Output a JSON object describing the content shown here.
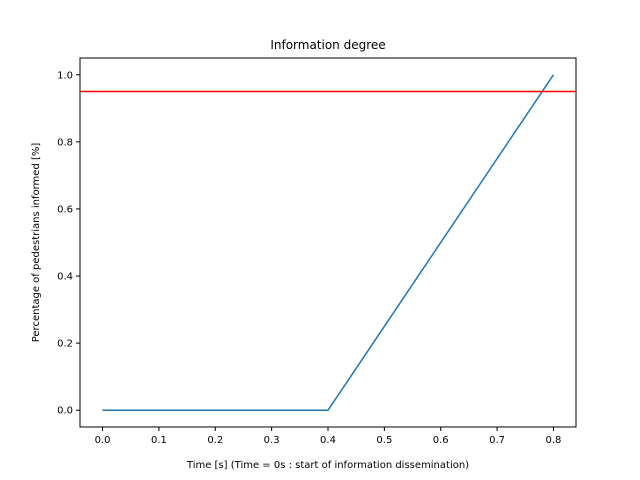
{
  "chart_data": {
    "type": "line",
    "title": "Information degree",
    "xlabel": "Time [s] (Time = 0s : start of information dissemination)",
    "ylabel": "Percentage of pedestrians informed [%]",
    "xlim": [
      -0.04,
      0.84
    ],
    "ylim": [
      -0.05,
      1.05
    ],
    "xticks": [
      0.0,
      0.1,
      0.2,
      0.3,
      0.4,
      0.5,
      0.6,
      0.7,
      0.8
    ],
    "xtick_labels": [
      "0.0",
      "0.1",
      "0.2",
      "0.3",
      "0.4",
      "0.5",
      "0.6",
      "0.7",
      "0.8"
    ],
    "yticks": [
      0.0,
      0.2,
      0.4,
      0.6,
      0.8,
      1.0
    ],
    "ytick_labels": [
      "0.0",
      "0.2",
      "0.4",
      "0.6",
      "0.8",
      "1.0"
    ],
    "grid": false,
    "series": [
      {
        "color": "#1f77b4",
        "x": [
          0.0,
          0.1,
          0.2,
          0.3,
          0.4,
          0.8
        ],
        "y": [
          0.0,
          0.0,
          0.0,
          0.0,
          0.0,
          1.0
        ]
      }
    ],
    "hlines": [
      {
        "y": 0.95,
        "color": "#ff0000"
      }
    ]
  }
}
